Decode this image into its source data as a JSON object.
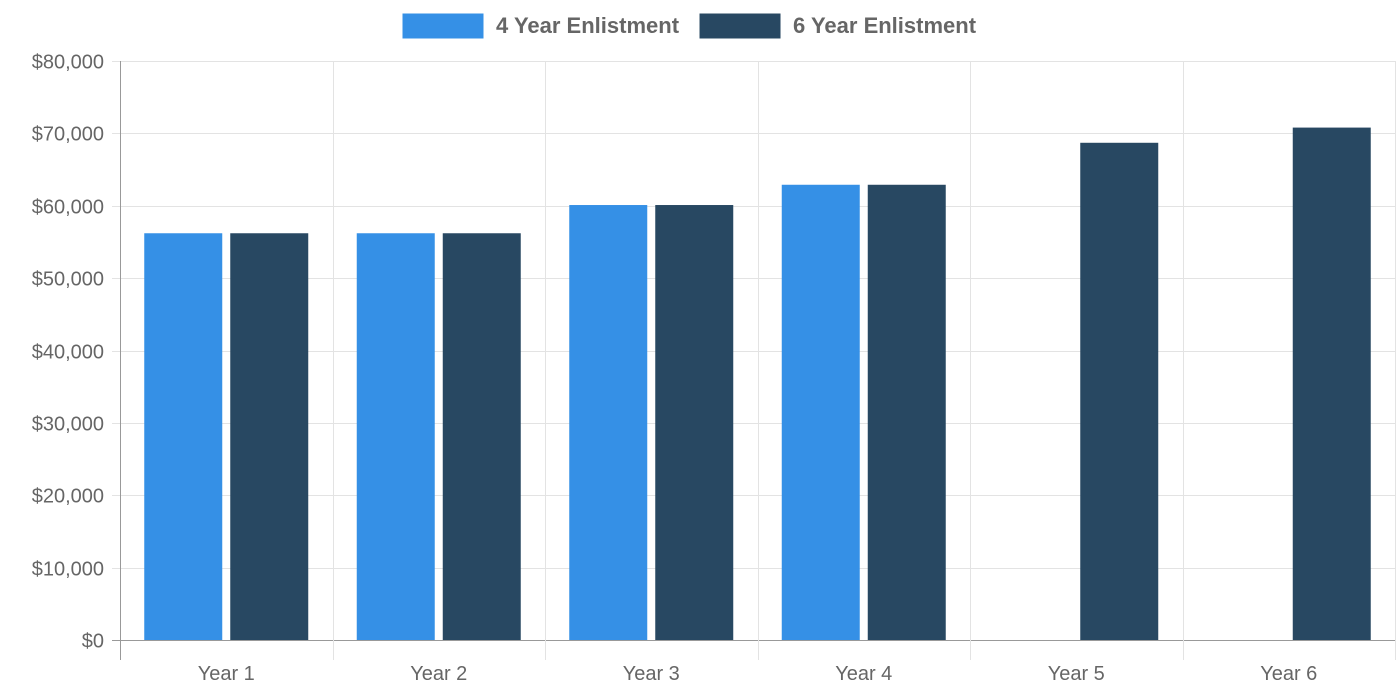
{
  "chart_data": {
    "type": "bar",
    "title": "",
    "xlabel": "",
    "ylabel": "",
    "categories": [
      "Year 1",
      "Year 2",
      "Year 3",
      "Year 4",
      "Year 5",
      "Year 6"
    ],
    "series": [
      {
        "name": "4 Year Enlistment",
        "color": "#3590e6",
        "values": [
          56200,
          56200,
          60100,
          62900,
          null,
          null
        ]
      },
      {
        "name": "6 Year Enlistment",
        "color": "#284862",
        "values": [
          56200,
          56200,
          60100,
          62900,
          68700,
          70800
        ]
      }
    ],
    "ylim": [
      0,
      80000
    ],
    "yticks": [
      "$0",
      "$10,000",
      "$20,000",
      "$30,000",
      "$40,000",
      "$50,000",
      "$60,000",
      "$70,000",
      "$80,000"
    ],
    "ytick_values": [
      0,
      10000,
      20000,
      30000,
      40000,
      50000,
      60000,
      70000,
      80000
    ],
    "grid": true,
    "legend": "top-center"
  }
}
